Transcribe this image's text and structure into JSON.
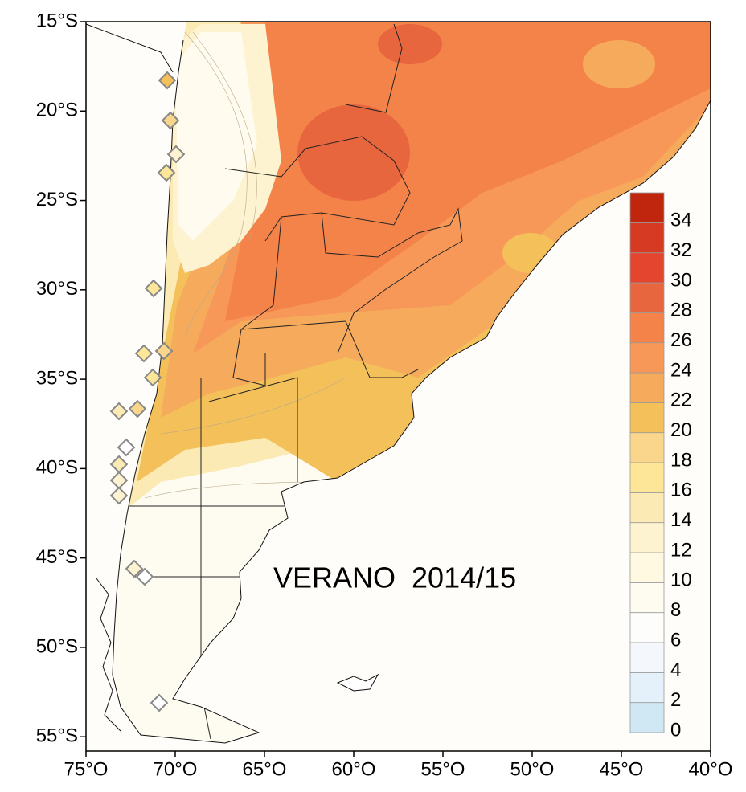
{
  "map": {
    "annotation": "VERANO  2014/15",
    "xlim": [
      -75,
      -40
    ],
    "ylim": [
      -15,
      -55.8
    ],
    "xticks": [
      {
        "value": -75,
        "label": "75°O"
      },
      {
        "value": -70,
        "label": "70°O"
      },
      {
        "value": -65,
        "label": "65°O"
      },
      {
        "value": -60,
        "label": "60°O"
      },
      {
        "value": -55,
        "label": "55°O"
      },
      {
        "value": -50,
        "label": "50°O"
      },
      {
        "value": -45,
        "label": "45°O"
      },
      {
        "value": -40,
        "label": "40°O"
      }
    ],
    "yticks": [
      {
        "value": -15,
        "label": "15°S"
      },
      {
        "value": -20,
        "label": "20°S"
      },
      {
        "value": -25,
        "label": "25°S"
      },
      {
        "value": -30,
        "label": "30°S"
      },
      {
        "value": -35,
        "label": "35°S"
      },
      {
        "value": -40,
        "label": "40°S"
      },
      {
        "value": -45,
        "label": "45°S"
      },
      {
        "value": -50,
        "label": "50°S"
      },
      {
        "value": -55,
        "label": "55°S"
      }
    ],
    "legend": {
      "levels": [
        0,
        2,
        4,
        6,
        8,
        10,
        12,
        14,
        16,
        18,
        20,
        22,
        24,
        26,
        28,
        30,
        32,
        34
      ],
      "colors": [
        "#cfe8f3",
        "#e4f1fa",
        "#f4f8fc",
        "#fdfdfb",
        "#fefcf0",
        "#fff9e2",
        "#fdf3d0",
        "#fbeab4",
        "#fde697",
        "#f9d68c",
        "#f4c05a",
        "#f6aa5c",
        "#f79858",
        "#f4834a",
        "#e8663e",
        "#e4452f",
        "#d63a22",
        "#c0260e"
      ]
    }
  }
}
